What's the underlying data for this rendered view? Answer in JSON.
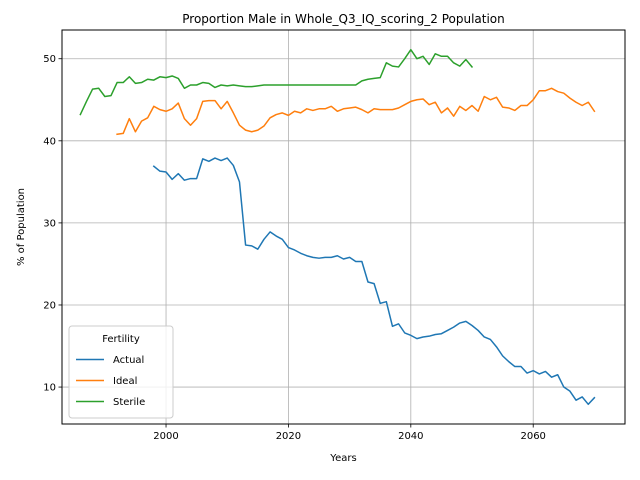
{
  "chart_data": {
    "type": "line",
    "title": "Proportion Male in Whole_Q3_IQ_scoring_2 Population",
    "xlabel": "Years",
    "ylabel": "% of Population",
    "xlim": [
      1983,
      2075
    ],
    "ylim": [
      5.5,
      53.5
    ],
    "xticks": [
      2000,
      2020,
      2040,
      2060
    ],
    "yticks": [
      10,
      20,
      30,
      40,
      50
    ],
    "grid": true,
    "legend": {
      "title": "Fertility",
      "position": "lower-left"
    },
    "series": [
      {
        "name": "Actual",
        "color": "#1f77b4",
        "x": [
          1998,
          1999,
          2000,
          2001,
          2002,
          2003,
          2004,
          2005,
          2006,
          2007,
          2008,
          2009,
          2010,
          2011,
          2012,
          2013,
          2014,
          2015,
          2016,
          2017,
          2018,
          2019,
          2020,
          2021,
          2022,
          2023,
          2024,
          2025,
          2026,
          2027,
          2028,
          2029,
          2030,
          2031,
          2032,
          2033,
          2034,
          2035,
          2036,
          2037,
          2038,
          2039,
          2040,
          2041,
          2042,
          2043,
          2044,
          2045,
          2046,
          2047,
          2048,
          2049,
          2050,
          2051,
          2052,
          2053,
          2054,
          2055,
          2056,
          2057,
          2058,
          2059,
          2060,
          2061,
          2062,
          2063,
          2064,
          2065,
          2066,
          2067,
          2068,
          2069,
          2070
        ],
        "values": [
          36.9,
          36.3,
          36.2,
          35.3,
          36.0,
          35.2,
          35.4,
          35.4,
          37.8,
          37.5,
          37.9,
          37.6,
          37.9,
          37.0,
          35.0,
          27.3,
          27.2,
          26.8,
          28.0,
          28.9,
          28.4,
          28.0,
          27.0,
          26.7,
          26.3,
          26.0,
          25.8,
          25.7,
          25.8,
          25.8,
          26.0,
          25.6,
          25.8,
          25.3,
          25.3,
          22.8,
          22.6,
          20.2,
          20.4,
          17.4,
          17.7,
          16.6,
          16.3,
          15.9,
          16.1,
          16.2,
          16.4,
          16.5,
          16.9,
          17.3,
          17.8,
          18.0,
          17.5,
          16.9,
          16.1,
          15.8,
          14.9,
          13.8,
          13.1,
          12.5,
          12.5,
          11.7,
          12.0,
          11.6,
          11.9,
          11.2,
          11.5,
          10.0,
          9.5,
          8.4,
          8.8,
          7.9,
          8.7
        ]
      },
      {
        "name": "Ideal",
        "color": "#ff7f0e",
        "x": [
          1992,
          1993,
          1994,
          1995,
          1996,
          1997,
          1998,
          1999,
          2000,
          2001,
          2002,
          2003,
          2004,
          2005,
          2006,
          2007,
          2008,
          2009,
          2010,
          2011,
          2012,
          2013,
          2014,
          2015,
          2016,
          2017,
          2018,
          2019,
          2020,
          2021,
          2022,
          2023,
          2024,
          2025,
          2026,
          2027,
          2028,
          2029,
          2030,
          2031,
          2032,
          2033,
          2034,
          2035,
          2036,
          2037,
          2038,
          2039,
          2040,
          2041,
          2042,
          2043,
          2044,
          2045,
          2046,
          2047,
          2048,
          2049,
          2050,
          2051,
          2052,
          2053,
          2054,
          2055,
          2056,
          2057,
          2058,
          2059,
          2060,
          2061,
          2062,
          2063,
          2064,
          2065,
          2066,
          2067,
          2068,
          2069,
          2070
        ],
        "values": [
          40.8,
          40.9,
          42.7,
          41.1,
          42.4,
          42.8,
          44.2,
          43.8,
          43.6,
          43.9,
          44.6,
          42.7,
          41.9,
          42.7,
          44.8,
          44.9,
          44.9,
          43.9,
          44.8,
          43.4,
          41.9,
          41.3,
          41.1,
          41.3,
          41.8,
          42.8,
          43.2,
          43.4,
          43.1,
          43.6,
          43.4,
          43.9,
          43.7,
          43.9,
          43.9,
          44.2,
          43.6,
          43.9,
          44.0,
          44.1,
          43.8,
          43.4,
          43.9,
          43.8,
          43.8,
          43.8,
          44.0,
          44.4,
          44.8,
          45.0,
          45.1,
          44.4,
          44.7,
          43.4,
          44.0,
          43.0,
          44.2,
          43.7,
          44.3,
          43.6,
          45.4,
          45.0,
          45.3,
          44.1,
          44.0,
          43.7,
          44.3,
          44.3,
          45.0,
          46.1,
          46.1,
          46.4,
          46.0,
          45.8,
          45.2,
          44.7,
          44.3,
          44.7,
          43.6
        ]
      },
      {
        "name": "Sterile",
        "color": "#2ca02c",
        "x": [
          1986,
          1987,
          1988,
          1989,
          1990,
          1991,
          1992,
          1993,
          1994,
          1995,
          1996,
          1997,
          1998,
          1999,
          2000,
          2001,
          2002,
          2003,
          2004,
          2005,
          2006,
          2007,
          2008,
          2009,
          2010,
          2011,
          2012,
          2013,
          2014,
          2015,
          2016,
          2017,
          2018,
          2019,
          2020,
          2021,
          2022,
          2023,
          2024,
          2025,
          2026,
          2027,
          2028,
          2029,
          2030,
          2031,
          2032,
          2033,
          2034,
          2035,
          2036,
          2037,
          2038,
          2039,
          2040,
          2041,
          2042,
          2043,
          2044,
          2045,
          2046,
          2047,
          2048,
          2049,
          2050
        ],
        "values": [
          43.2,
          44.8,
          46.3,
          46.4,
          45.4,
          45.5,
          47.1,
          47.1,
          47.8,
          47.0,
          47.1,
          47.5,
          47.4,
          47.8,
          47.7,
          47.9,
          47.6,
          46.4,
          46.8,
          46.8,
          47.1,
          47.0,
          46.5,
          46.8,
          46.7,
          46.8,
          46.7,
          46.6,
          46.6,
          46.7,
          46.8,
          46.8,
          46.8,
          46.8,
          46.8,
          46.8,
          46.8,
          46.8,
          46.8,
          46.8,
          46.8,
          46.8,
          46.8,
          46.8,
          46.8,
          46.8,
          47.3,
          47.5,
          47.6,
          47.7,
          49.5,
          49.1,
          49.0,
          50.0,
          51.1,
          50.0,
          50.3,
          49.3,
          50.6,
          50.3,
          50.3,
          49.5,
          49.1,
          49.9,
          49.0
        ]
      }
    ]
  }
}
